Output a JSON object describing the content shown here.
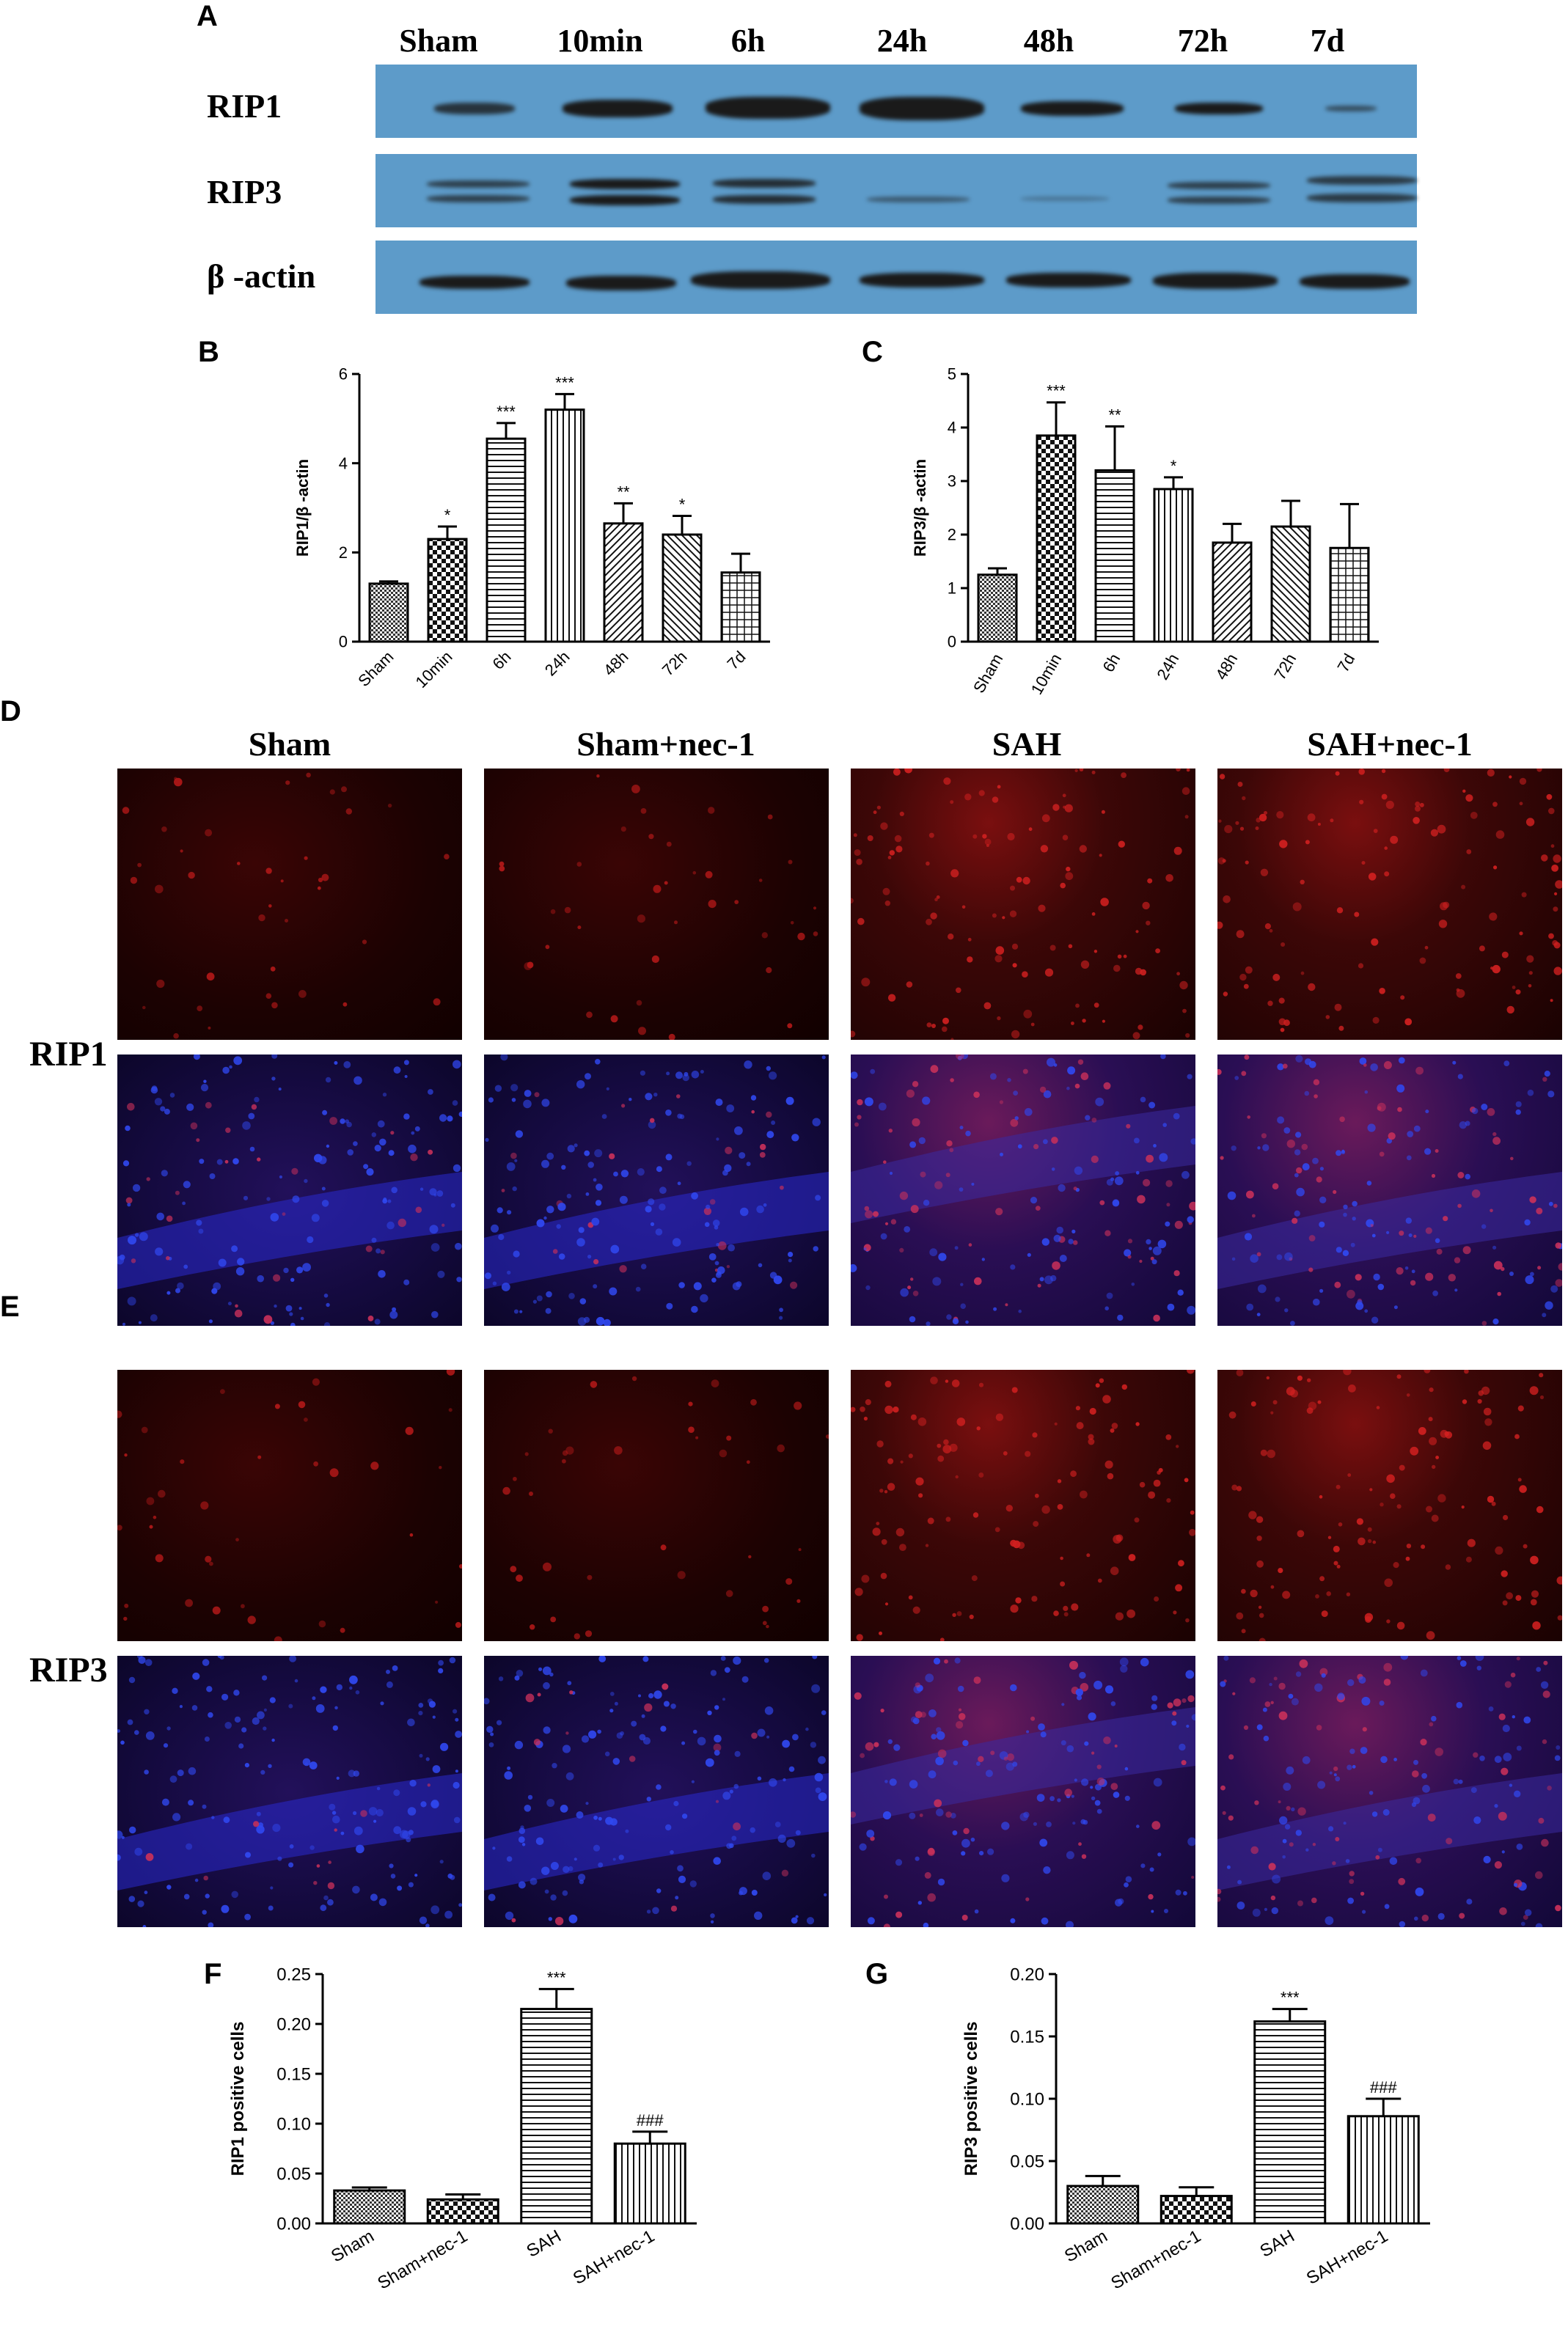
{
  "panels": {
    "A": "A",
    "B": "B",
    "C": "C",
    "D": "D",
    "E": "E",
    "F": "F",
    "G": "G"
  },
  "blot": {
    "lanes": [
      "Sham",
      "10min",
      "6h",
      "24h",
      "48h",
      "72h",
      "7d"
    ],
    "rows": [
      "RIP1",
      "RIP3",
      "β -actin"
    ],
    "background_color": "#5d9bc9"
  },
  "micrographs": {
    "conditions": [
      "Sham",
      "Sham+nec-1",
      "SAH",
      "SAH+nec-1"
    ],
    "row_labels": [
      "RIP1",
      "RIP3"
    ]
  },
  "chart_data": [
    {
      "panel": "B",
      "type": "bar",
      "categories": [
        "Sham",
        "10min",
        "6h",
        "24h",
        "48h",
        "72h",
        "7d"
      ],
      "values": [
        1.3,
        2.3,
        4.55,
        5.2,
        2.65,
        2.4,
        1.55
      ],
      "errors": [
        0.05,
        0.28,
        0.35,
        0.35,
        0.45,
        0.42,
        0.42
      ],
      "annotations": [
        "",
        "*",
        "***",
        "***",
        "**",
        "*",
        ""
      ],
      "xlabel": "",
      "ylabel": "RIP1/β -actin",
      "ylim": [
        0,
        6
      ],
      "yticks": [
        0,
        2,
        4,
        6
      ]
    },
    {
      "panel": "C",
      "type": "bar",
      "categories": [
        "Sham",
        "10min",
        "6h",
        "24h",
        "48h",
        "72h",
        "7d"
      ],
      "values": [
        1.25,
        3.85,
        3.2,
        2.85,
        1.85,
        2.15,
        1.75
      ],
      "errors": [
        0.12,
        0.62,
        0.82,
        0.22,
        0.35,
        0.48,
        0.82
      ],
      "annotations": [
        "",
        "***",
        "**",
        "*",
        "",
        "",
        ""
      ],
      "xlabel": "",
      "ylabel": "RIP3/β -actin",
      "ylim": [
        0,
        5
      ],
      "yticks": [
        0,
        1,
        2,
        3,
        4,
        5
      ]
    },
    {
      "panel": "F",
      "type": "bar",
      "categories": [
        "Sham",
        "Sham+nec-1",
        "SAH",
        "SAH+nec-1"
      ],
      "values": [
        0.033,
        0.024,
        0.215,
        0.08
      ],
      "errors": [
        0.003,
        0.005,
        0.02,
        0.012
      ],
      "annotations": [
        "",
        "",
        "***",
        "###"
      ],
      "xlabel": "",
      "ylabel": "RIP1 positive cells",
      "ylim": [
        0,
        0.25
      ],
      "yticks": [
        "0.00",
        "0.05",
        "0.10",
        "0.15",
        "0.20",
        "0.25"
      ]
    },
    {
      "panel": "G",
      "type": "bar",
      "categories": [
        "Sham",
        "Sham+nec-1",
        "SAH",
        "SAH+nec-1"
      ],
      "values": [
        0.03,
        0.022,
        0.162,
        0.086
      ],
      "errors": [
        0.008,
        0.007,
        0.01,
        0.014
      ],
      "annotations": [
        "",
        "",
        "***",
        "###"
      ],
      "xlabel": "",
      "ylabel": "RIP3 positive cells",
      "ylim": [
        0,
        0.2
      ],
      "yticks": [
        "0.00",
        "0.05",
        "0.10",
        "0.15",
        "0.20"
      ]
    }
  ]
}
